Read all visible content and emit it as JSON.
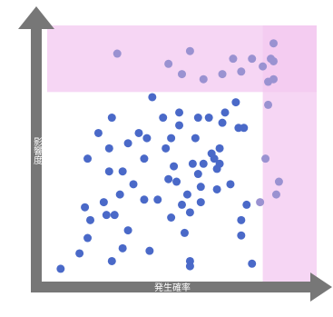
{
  "chart_data": {
    "type": "scatter",
    "title": "",
    "xlabel": "発生確率",
    "ylabel": "影響度",
    "xlim": [
      0,
      100
    ],
    "ylim": [
      0,
      100
    ],
    "grid": false,
    "legend": "none",
    "highlight_regions": [
      {
        "name": "",
        "x": [
          0,
          100
        ],
        "y": [
          74,
          100
        ],
        "color": "#f3c8f0"
      },
      {
        "name": "",
        "x": [
          80,
          100
        ],
        "y": [
          0,
          100
        ],
        "color": "#f3c8f0"
      }
    ],
    "series": [
      {
        "name": "",
        "color": "#4a69c8",
        "points": [
          [
            5,
            5
          ],
          [
            12,
            11
          ],
          [
            15,
            17
          ],
          [
            16,
            24
          ],
          [
            14,
            29
          ],
          [
            15,
            48
          ],
          [
            19,
            58
          ],
          [
            21,
            31
          ],
          [
            22,
            26
          ],
          [
            24,
            8
          ],
          [
            25,
            26
          ],
          [
            23,
            43
          ],
          [
            23,
            52
          ],
          [
            24,
            64
          ],
          [
            27,
            34
          ],
          [
            28,
            13
          ],
          [
            28,
            43
          ],
          [
            30,
            20
          ],
          [
            30,
            54
          ],
          [
            32,
            38
          ],
          [
            34,
            58
          ],
          [
            36,
            48
          ],
          [
            36,
            32
          ],
          [
            37,
            56
          ],
          [
            38,
            12
          ],
          [
            39,
            72
          ],
          [
            41,
            32
          ],
          [
            43,
            64
          ],
          [
            44,
            52
          ],
          [
            45,
            40
          ],
          [
            46,
            25
          ],
          [
            46,
            56
          ],
          [
            47,
            45
          ],
          [
            48,
            39
          ],
          [
            49,
            66
          ],
          [
            49,
            61
          ],
          [
            50,
            30
          ],
          [
            51,
            19
          ],
          [
            52,
            34
          ],
          [
            53,
            6
          ],
          [
            53,
            8
          ],
          [
            53,
            27
          ],
          [
            54,
            46
          ],
          [
            55,
            56
          ],
          [
            56,
            64
          ],
          [
            56,
            42
          ],
          [
            57,
            37
          ],
          [
            57,
            31
          ],
          [
            58,
            46
          ],
          [
            60,
            64
          ],
          [
            61,
            50
          ],
          [
            62,
            48
          ],
          [
            63,
            44
          ],
          [
            63,
            36
          ],
          [
            64,
            52
          ],
          [
            64,
            46
          ],
          [
            65,
            62
          ],
          [
            66,
            66
          ],
          [
            68,
            38
          ],
          [
            70,
            70
          ],
          [
            71,
            60
          ],
          [
            72,
            24
          ],
          [
            72,
            18
          ],
          [
            73,
            60
          ],
          [
            74,
            30
          ],
          [
            76,
            7
          ]
        ]
      },
      {
        "name": "",
        "color": "#9a92d1",
        "points": [
          [
            26,
            89
          ],
          [
            45,
            85
          ],
          [
            50,
            81
          ],
          [
            53,
            90
          ],
          [
            58,
            79
          ],
          [
            65,
            81
          ],
          [
            69,
            87
          ],
          [
            72,
            82
          ],
          [
            76,
            87
          ],
          [
            80,
            84
          ],
          [
            82,
            69
          ],
          [
            81,
            48
          ],
          [
            86,
            39
          ],
          [
            82,
            78
          ],
          [
            84,
            79
          ],
          [
            79,
            31
          ],
          [
            83,
            87
          ],
          [
            84,
            86
          ],
          [
            85,
            34
          ],
          [
            84,
            93
          ]
        ]
      }
    ]
  }
}
